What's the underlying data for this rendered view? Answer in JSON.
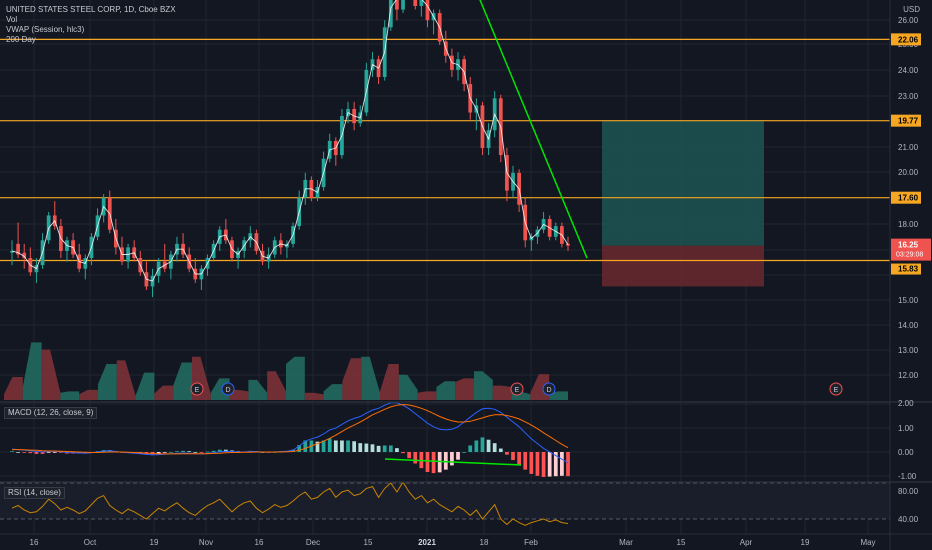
{
  "header": {
    "title": "UNITED STATES STEEL CORP, 1D, Cboe BZX",
    "currency": "USD",
    "vol_label": "Vol",
    "vwap_label": "VWAP (Session, hlc3)",
    "ma_label": "200 Day",
    "macd_label": "MACD (12, 26, close, 9)",
    "rsi_label": "RSI (14, close)"
  },
  "chart_data": {
    "type": "candlestick",
    "title": "UNITED STATES STEEL CORP, 1D, Cboe BZX",
    "price_axis": {
      "ticks": [
        "26.00",
        "25.00",
        "24.00",
        "23.00",
        "21.00",
        "20.00",
        "19.00",
        "18.00",
        "17.00",
        "15.00",
        "14.00",
        "13.00",
        "12.00"
      ],
      "ylim": [
        11.4,
        26.3
      ]
    },
    "macd_axis": {
      "ticks": [
        "2.00",
        "1.00",
        "0.00",
        "-1.00"
      ]
    },
    "rsi_axis": {
      "ticks": [
        "80.00",
        "40.00"
      ]
    },
    "x_axis": {
      "tick_labels": [
        "16",
        "Oct",
        "19",
        "Nov",
        "16",
        "Dec",
        "15",
        "2021",
        "18",
        "Feb",
        "Mar",
        "15",
        "Apr",
        "19",
        "May"
      ]
    },
    "price_labels": {
      "level_22": "22.06",
      "level_19": "19.77",
      "level_17": "17.60",
      "last": "16.25",
      "countdown": "03:29:08",
      "level_15": "15.83"
    },
    "horizontal_levels": [
      22.06,
      19.77,
      17.6,
      15.83
    ],
    "trendline": {
      "from": {
        "date": "2021-01-08",
        "price": 24.6
      },
      "to": {
        "date": "2021-02-12",
        "price": 15.9
      }
    },
    "position": {
      "entry": 16.25,
      "target": 19.77,
      "stop": 15.1
    },
    "events": [
      "E",
      "D",
      "E",
      "D",
      "E"
    ],
    "colors": {
      "up": "#26a69a",
      "down": "#ef5350",
      "level": "#f5a623",
      "trend": "#00e600",
      "macd": "#2962ff",
      "signal": "#ff6d00",
      "rsi": "#c98500"
    },
    "candles": [
      [
        16.05,
        16.4,
        15.7,
        16.1
      ],
      [
        16.3,
        16.9,
        15.9,
        16.0
      ],
      [
        16.05,
        16.3,
        15.6,
        15.9
      ],
      [
        15.9,
        16.2,
        15.4,
        15.5
      ],
      [
        15.5,
        15.9,
        15.2,
        15.7
      ],
      [
        15.7,
        16.6,
        15.6,
        16.4
      ],
      [
        16.4,
        17.2,
        16.3,
        17.1
      ],
      [
        17.1,
        17.5,
        16.7,
        16.8
      ],
      [
        16.8,
        17.0,
        15.9,
        16.1
      ],
      [
        16.1,
        16.5,
        15.8,
        16.4
      ],
      [
        16.4,
        16.6,
        15.9,
        16.0
      ],
      [
        16.0,
        16.3,
        15.5,
        15.6
      ],
      [
        15.6,
        16.0,
        15.3,
        15.9
      ],
      [
        15.9,
        16.6,
        15.7,
        16.5
      ],
      [
        16.5,
        17.3,
        16.4,
        17.1
      ],
      [
        17.1,
        17.7,
        16.9,
        17.6
      ],
      [
        17.6,
        17.8,
        16.6,
        16.7
      ],
      [
        16.7,
        17.0,
        16.0,
        16.2
      ],
      [
        16.2,
        16.5,
        15.7,
        15.8
      ],
      [
        15.8,
        16.3,
        15.6,
        16.2
      ],
      [
        16.2,
        16.4,
        15.8,
        15.9
      ],
      [
        15.9,
        16.1,
        15.4,
        15.5
      ],
      [
        15.5,
        15.8,
        15.0,
        15.1
      ],
      [
        15.1,
        15.6,
        14.8,
        15.4
      ],
      [
        15.4,
        15.9,
        15.2,
        15.8
      ],
      [
        15.8,
        16.3,
        15.5,
        15.6
      ],
      [
        15.6,
        16.1,
        15.3,
        16.0
      ],
      [
        16.0,
        16.5,
        15.8,
        16.3
      ],
      [
        16.3,
        16.6,
        15.9,
        16.0
      ],
      [
        16.0,
        16.2,
        15.5,
        15.6
      ],
      [
        15.6,
        15.9,
        15.2,
        15.3
      ],
      [
        15.3,
        15.7,
        15.0,
        15.6
      ],
      [
        15.6,
        16.0,
        15.4,
        15.9
      ],
      [
        15.9,
        16.4,
        15.8,
        16.3
      ],
      [
        16.3,
        16.8,
        16.1,
        16.7
      ],
      [
        16.7,
        17.0,
        16.3,
        16.4
      ],
      [
        16.4,
        16.5,
        15.8,
        15.9
      ],
      [
        15.9,
        16.2,
        15.6,
        16.1
      ],
      [
        16.1,
        16.5,
        15.9,
        16.4
      ],
      [
        16.4,
        16.8,
        16.2,
        16.6
      ],
      [
        16.6,
        16.7,
        16.0,
        16.1
      ],
      [
        16.1,
        16.3,
        15.7,
        15.8
      ],
      [
        15.8,
        16.2,
        15.6,
        16.0
      ],
      [
        16.0,
        16.5,
        15.9,
        16.4
      ],
      [
        16.4,
        16.6,
        16.0,
        16.2
      ],
      [
        16.2,
        16.4,
        15.9,
        16.3
      ],
      [
        16.3,
        16.9,
        16.2,
        16.8
      ],
      [
        16.8,
        17.8,
        16.7,
        17.6
      ],
      [
        17.6,
        18.3,
        17.4,
        18.1
      ],
      [
        18.1,
        18.2,
        17.5,
        17.6
      ],
      [
        17.6,
        18.1,
        17.5,
        17.9
      ],
      [
        17.9,
        18.9,
        17.8,
        18.7
      ],
      [
        18.7,
        19.4,
        18.6,
        19.2
      ],
      [
        19.2,
        19.3,
        18.5,
        18.8
      ],
      [
        18.8,
        20.1,
        18.7,
        19.9
      ],
      [
        19.9,
        20.3,
        19.7,
        20.1
      ],
      [
        20.1,
        20.3,
        19.5,
        19.7
      ],
      [
        19.7,
        20.2,
        19.6,
        20.0
      ],
      [
        20.0,
        21.4,
        19.9,
        21.2
      ],
      [
        21.2,
        21.7,
        21.0,
        21.5
      ],
      [
        21.5,
        21.6,
        20.8,
        21.0
      ],
      [
        21.0,
        22.6,
        20.9,
        22.4
      ],
      [
        22.4,
        23.7,
        22.3,
        23.5
      ],
      [
        23.5,
        23.7,
        22.6,
        22.9
      ],
      [
        22.9,
        24.3,
        22.8,
        24.1
      ],
      [
        24.1,
        24.4,
        23.3,
        23.6
      ],
      [
        23.6,
        23.7,
        22.9,
        23.0
      ],
      [
        23.0,
        23.6,
        22.7,
        23.4
      ],
      [
        23.4,
        23.6,
        22.4,
        22.6
      ],
      [
        22.6,
        22.9,
        22.2,
        22.8
      ],
      [
        22.8,
        22.9,
        21.9,
        22.0
      ],
      [
        22.0,
        22.3,
        21.4,
        21.6
      ],
      [
        21.6,
        21.8,
        21.0,
        21.2
      ],
      [
        21.2,
        21.7,
        20.9,
        21.5
      ],
      [
        21.5,
        21.6,
        20.6,
        20.8
      ],
      [
        20.8,
        21.0,
        19.8,
        20.0
      ],
      [
        20.0,
        20.4,
        19.5,
        20.2
      ],
      [
        20.2,
        20.3,
        18.8,
        19.0
      ],
      [
        19.0,
        19.7,
        18.8,
        19.5
      ],
      [
        19.5,
        20.6,
        19.3,
        20.4
      ],
      [
        20.4,
        20.5,
        18.6,
        18.8
      ],
      [
        18.8,
        19.0,
        17.5,
        17.8
      ],
      [
        17.8,
        18.5,
        17.6,
        18.3
      ],
      [
        18.3,
        18.4,
        17.2,
        17.4
      ],
      [
        17.4,
        17.6,
        16.2,
        16.4
      ],
      [
        16.4,
        16.6,
        16.1,
        16.5
      ],
      [
        16.5,
        16.8,
        16.3,
        16.7
      ],
      [
        16.7,
        17.2,
        16.6,
        17.0
      ],
      [
        17.0,
        17.1,
        16.4,
        16.5
      ],
      [
        16.5,
        16.9,
        16.4,
        16.8
      ],
      [
        16.8,
        16.9,
        16.2,
        16.3
      ],
      [
        16.3,
        16.5,
        16.1,
        16.25
      ]
    ],
    "volume_areas": [
      [
        8,
        32
      ],
      [
        18,
        80
      ],
      [
        70,
        10
      ],
      [
        10,
        12
      ],
      [
        8,
        14
      ],
      [
        22,
        50
      ],
      [
        55,
        6
      ],
      [
        6,
        38
      ],
      [
        9,
        20
      ],
      [
        20,
        52
      ],
      [
        60,
        8
      ],
      [
        10,
        30
      ],
      [
        14,
        12
      ],
      [
        28,
        10
      ],
      [
        40,
        12
      ],
      [
        50,
        60
      ],
      [
        10,
        8
      ],
      [
        12,
        22
      ],
      [
        26,
        58
      ],
      [
        60,
        10
      ],
      [
        12,
        50
      ],
      [
        35,
        14
      ],
      [
        10,
        12
      ],
      [
        18,
        26
      ],
      [
        25,
        30
      ],
      [
        40,
        28
      ],
      [
        20,
        18
      ],
      [
        12,
        8
      ],
      [
        10,
        36
      ],
      [
        9,
        12
      ]
    ],
    "macd": [
      0.12,
      0.1,
      0.08,
      0.05,
      0.02,
      0.0,
      0.02,
      0.03,
      0.01,
      -0.02,
      -0.03,
      -0.04,
      -0.05,
      -0.03,
      0.0,
      0.04,
      0.05,
      0.02,
      -0.01,
      -0.03,
      -0.05,
      -0.07,
      -0.1,
      -0.12,
      -0.11,
      -0.09,
      -0.08,
      -0.06,
      -0.04,
      -0.05,
      -0.07,
      -0.08,
      -0.06,
      -0.03,
      0.01,
      0.03,
      0.02,
      0.0,
      0.0,
      0.02,
      0.02,
      0.0,
      -0.01,
      0.0,
      0.02,
      0.03,
      0.08,
      0.25,
      0.45,
      0.55,
      0.62,
      0.75,
      0.92,
      1.0,
      1.15,
      1.3,
      1.4,
      1.48,
      1.62,
      1.75,
      1.82,
      1.95,
      2.05,
      2.05,
      1.95,
      1.8,
      1.6,
      1.4,
      1.2,
      1.05,
      0.95,
      0.92,
      0.95,
      1.05,
      1.25,
      1.45,
      1.65,
      1.8,
      1.82,
      1.78,
      1.65,
      1.45,
      1.25,
      1.05,
      0.8,
      0.55,
      0.35,
      0.15,
      0.0,
      -0.15,
      -0.3,
      -0.45
    ],
    "signal": [
      0.1,
      0.1,
      0.09,
      0.08,
      0.07,
      0.05,
      0.04,
      0.04,
      0.03,
      0.02,
      0.01,
      0.0,
      -0.01,
      -0.02,
      -0.02,
      -0.01,
      0.0,
      0.0,
      0.0,
      -0.01,
      -0.02,
      -0.03,
      -0.05,
      -0.06,
      -0.07,
      -0.08,
      -0.08,
      -0.08,
      -0.07,
      -0.07,
      -0.07,
      -0.07,
      -0.07,
      -0.06,
      -0.05,
      -0.03,
      -0.02,
      -0.02,
      -0.01,
      -0.01,
      0.0,
      0.0,
      0.0,
      0.0,
      0.0,
      0.01,
      0.02,
      0.07,
      0.15,
      0.25,
      0.35,
      0.45,
      0.57,
      0.7,
      0.85,
      1.0,
      1.12,
      1.25,
      1.4,
      1.55,
      1.66,
      1.78,
      1.88,
      1.95,
      1.98,
      1.96,
      1.9,
      1.82,
      1.72,
      1.6,
      1.48,
      1.38,
      1.3,
      1.25,
      1.25,
      1.28,
      1.35,
      1.42,
      1.5,
      1.55,
      1.56,
      1.52,
      1.46,
      1.38,
      1.26,
      1.12,
      0.97,
      0.8,
      0.64,
      0.48,
      0.32,
      0.18
    ],
    "rsi": [
      52,
      55,
      50,
      47,
      48,
      54,
      62,
      57,
      50,
      53,
      50,
      46,
      49,
      56,
      63,
      66,
      55,
      50,
      46,
      51,
      48,
      44,
      40,
      46,
      52,
      49,
      54,
      58,
      52,
      47,
      44,
      50,
      55,
      58,
      62,
      55,
      48,
      54,
      58,
      60,
      52,
      47,
      51,
      56,
      53,
      55,
      60,
      66,
      70,
      62,
      64,
      70,
      74,
      64,
      70,
      72,
      66,
      68,
      74,
      76,
      64,
      74,
      80,
      70,
      81,
      70,
      62,
      66,
      58,
      62,
      56,
      52,
      48,
      54,
      50,
      44,
      50,
      40,
      48,
      56,
      40,
      34,
      40,
      36,
      33,
      36,
      38,
      40,
      37,
      39,
      36,
      35
    ]
  }
}
